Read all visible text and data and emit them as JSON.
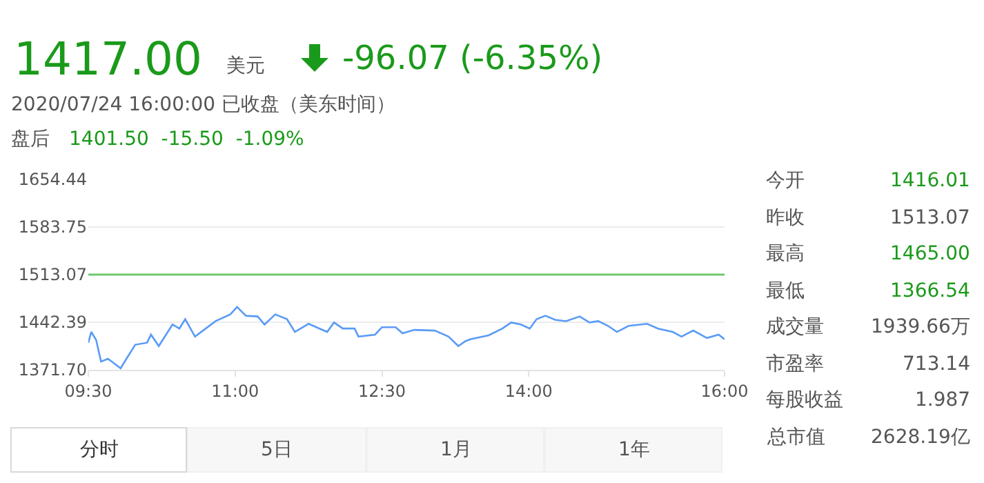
{
  "chart_data": {
    "type": "line",
    "x": [
      9.5,
      9.53,
      9.58,
      9.63,
      9.7,
      9.74,
      9.83,
      9.91,
      9.98,
      10.1,
      10.14,
      10.22,
      10.36,
      10.43,
      10.49,
      10.59,
      10.69,
      10.8,
      10.95,
      11.02,
      11.11,
      11.23,
      11.3,
      11.41,
      11.53,
      11.61,
      11.75,
      11.94,
      12.01,
      12.1,
      12.22,
      12.26,
      12.43,
      12.5,
      12.64,
      12.71,
      12.83,
      13.04,
      13.18,
      13.28,
      13.35,
      13.4,
      13.59,
      13.73,
      13.82,
      13.92,
      14.01,
      14.08,
      14.17,
      14.27,
      14.38,
      14.52,
      14.62,
      14.71,
      14.81,
      14.9,
      15.02,
      15.21,
      15.32,
      15.47,
      15.56,
      15.68,
      15.82,
      15.94,
      16.0
    ],
    "series": [
      {
        "color": "#5a9bf6",
        "values": [
          1412,
          1428,
          1416,
          1384,
          1388,
          1384,
          1374,
          1393,
          1409,
          1412,
          1424,
          1407,
          1439,
          1433,
          1447,
          1421,
          1432,
          1444,
          1454,
          1465,
          1452,
          1451,
          1439,
          1454,
          1447,
          1428,
          1440,
          1428,
          1442,
          1433,
          1433,
          1421,
          1424,
          1435,
          1435,
          1426,
          1431,
          1430,
          1421,
          1407,
          1414,
          1417,
          1423,
          1433,
          1442,
          1439,
          1433,
          1447,
          1452,
          1446,
          1444,
          1451,
          1442,
          1444,
          1437,
          1428,
          1437,
          1440,
          1433,
          1428,
          1421,
          1430,
          1419,
          1424,
          1417
        ]
      }
    ],
    "xlim": [
      9.5,
      16.0
    ],
    "xticks": [
      {
        "value": 9.5,
        "label": "09:30"
      },
      {
        "value": 11,
        "label": "11:00"
      },
      {
        "value": 12.5,
        "label": "12:30"
      },
      {
        "value": 14,
        "label": "14:00"
      },
      {
        "value": 16,
        "label": "16:00"
      }
    ],
    "ylim": [
      1371.7,
      1654.44
    ],
    "yticks": [
      {
        "value": 1371.7,
        "label": "1371.70"
      },
      {
        "value": 1442.39,
        "label": "1442.39"
      },
      {
        "value": 1513.07,
        "label": "1513.07"
      },
      {
        "value": 1583.75,
        "label": "1583.75"
      },
      {
        "value": 1654.44,
        "label": "1654.44"
      }
    ],
    "grid": "y",
    "legend": false,
    "marker": "none",
    "line_style": "solid",
    "ref_lines": [
      {
        "axis": "y",
        "value": 1513.07,
        "label": null,
        "color": "#6cc86c"
      }
    ],
    "annotations": [
      "1417.00",
      "美元",
      "-96.07 (-6.35%)",
      "2020/07/24 16:00:00 已收盘（美东时间）",
      "盘后",
      "1401.50  -15.50  -1.09%",
      "今开",
      "1416.01",
      "昨收",
      "1513.07",
      "最高",
      "1465.00",
      "最低",
      "1366.54",
      "成交量",
      "1939.66万",
      "市盈率",
      "713.14",
      "每股收益",
      "1.987",
      "总市值",
      "2628.19亿",
      "分时",
      "5日",
      "1月",
      "1年"
    ]
  }
}
